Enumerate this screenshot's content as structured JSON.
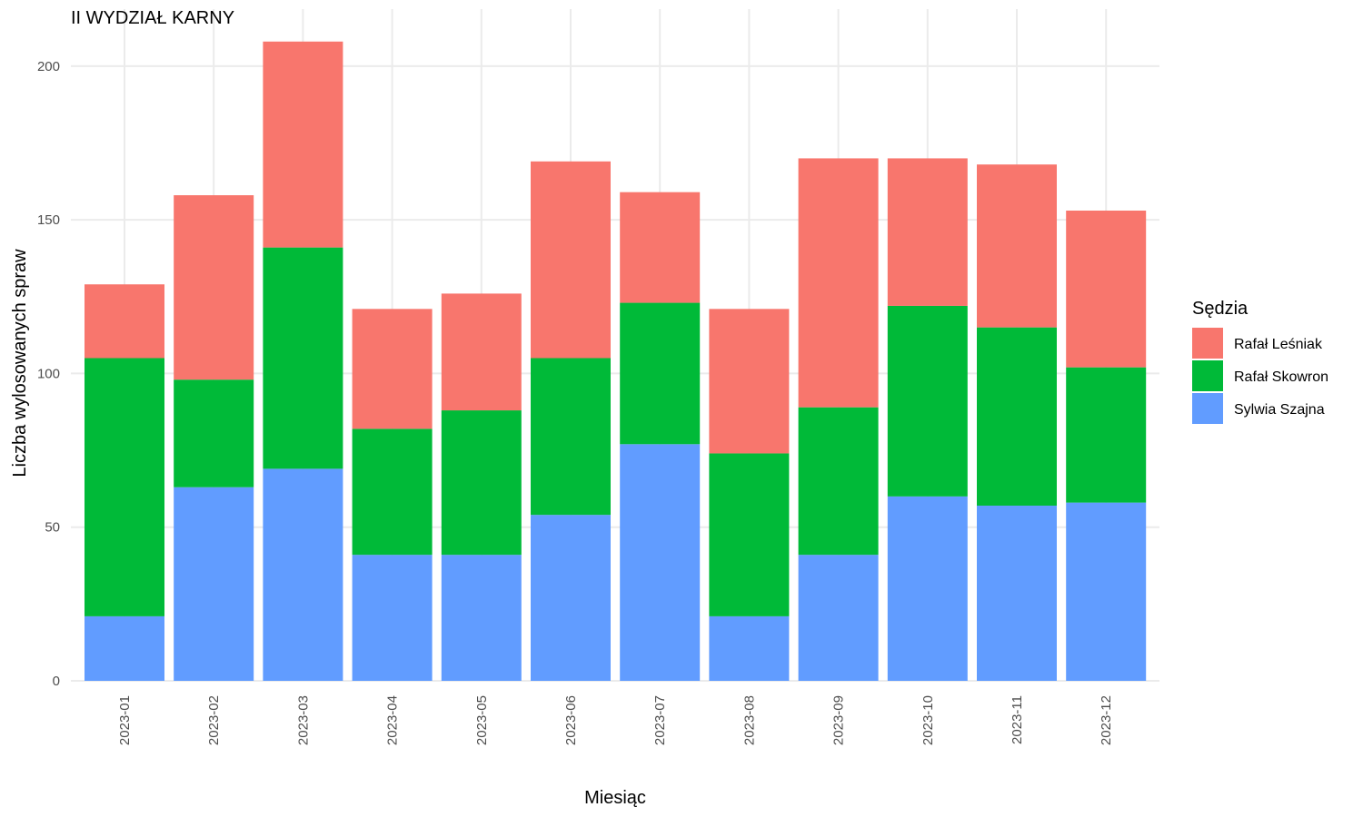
{
  "chart_data": {
    "type": "bar",
    "stacked": true,
    "title": "II WYDZIAŁ KARNY",
    "xlabel": "Miesiąc",
    "ylabel": "Liczba wylosowanych spraw",
    "categories": [
      "2023-01",
      "2023-02",
      "2023-03",
      "2023-04",
      "2023-05",
      "2023-06",
      "2023-07",
      "2023-08",
      "2023-09",
      "2023-10",
      "2023-11",
      "2023-12"
    ],
    "series": [
      {
        "name": "Sylwia Szajna",
        "color": "#619CFF",
        "values": [
          21,
          63,
          69,
          41,
          41,
          54,
          77,
          21,
          41,
          60,
          57,
          58
        ]
      },
      {
        "name": "Rafał Skowron",
        "color": "#00BA38",
        "values": [
          84,
          35,
          72,
          41,
          47,
          51,
          46,
          53,
          48,
          62,
          58,
          44
        ]
      },
      {
        "name": "Rafał Leśniak",
        "color": "#F8766D",
        "values": [
          24,
          60,
          67,
          39,
          38,
          64,
          36,
          47,
          81,
          48,
          53,
          51
        ]
      }
    ],
    "ylim": [
      0,
      210
    ],
    "yticks": [
      0,
      50,
      100,
      150,
      200
    ],
    "ytick_labels": [
      "0",
      "50",
      "100",
      "150",
      "200"
    ],
    "grid": true,
    "legend": {
      "title": "Sędzia",
      "placement": "right",
      "order": [
        "Rafał Leśniak",
        "Rafał Skowron",
        "Sylwia Szajna"
      ]
    }
  }
}
